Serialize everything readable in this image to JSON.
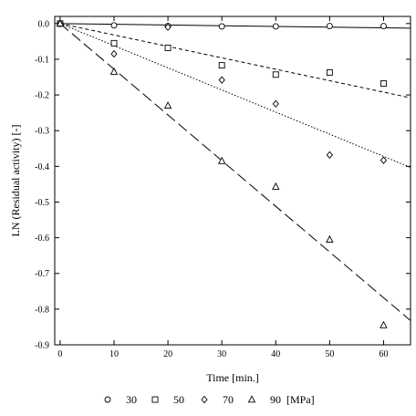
{
  "chart_data": {
    "type": "scatter",
    "title": "",
    "xlabel": "Time [min.]",
    "ylabel": "LN (Residual activity) [-]",
    "xlim": [
      -1,
      65
    ],
    "ylim": [
      -0.9,
      0.02
    ],
    "xticks": [
      0,
      10,
      20,
      30,
      40,
      50,
      60
    ],
    "yticks": [
      0.0,
      -0.1,
      -0.2,
      -0.3,
      -0.4,
      -0.5,
      -0.6,
      -0.7,
      -0.8,
      -0.9
    ],
    "xtick_labels": [
      "0",
      "10",
      "20",
      "30",
      "40",
      "50",
      "60"
    ],
    "ytick_labels": [
      "0.0",
      "-0.1",
      "-0.2",
      "-0.3",
      "-0.4",
      "-0.5",
      "-0.6",
      "-0.7",
      "-0.8",
      "-0.9"
    ],
    "grid": false,
    "legend_position": "bottom",
    "legend_unit": "[MPa]",
    "series": [
      {
        "name": "30",
        "marker": "circle",
        "x": [
          0,
          10,
          20,
          30,
          40,
          50,
          60
        ],
        "y": [
          0.0,
          -0.005,
          -0.007,
          -0.008,
          -0.008,
          -0.007,
          -0.007
        ],
        "fit_slope": -0.0002,
        "fit_style": "solid"
      },
      {
        "name": "50",
        "marker": "square",
        "x": [
          0,
          10,
          20,
          30,
          40,
          50,
          60
        ],
        "y": [
          0.0,
          -0.055,
          -0.068,
          -0.117,
          -0.143,
          -0.137,
          -0.168
        ],
        "fit_slope": -0.0032,
        "fit_style": "short-dash"
      },
      {
        "name": "70",
        "marker": "diamond",
        "x": [
          0,
          10,
          20,
          30,
          40,
          50,
          60
        ],
        "y": [
          0.0,
          -0.085,
          -0.01,
          -0.158,
          -0.225,
          -0.368,
          -0.383
        ],
        "fit_slope": -0.0062,
        "fit_style": "dotted"
      },
      {
        "name": "90",
        "marker": "triangle",
        "x": [
          0,
          10,
          20,
          30,
          40,
          50,
          60
        ],
        "y": [
          0.0,
          -0.135,
          -0.23,
          -0.385,
          -0.457,
          -0.605,
          -0.845
        ],
        "fit_slope": -0.0128,
        "fit_style": "long-dash"
      }
    ]
  }
}
